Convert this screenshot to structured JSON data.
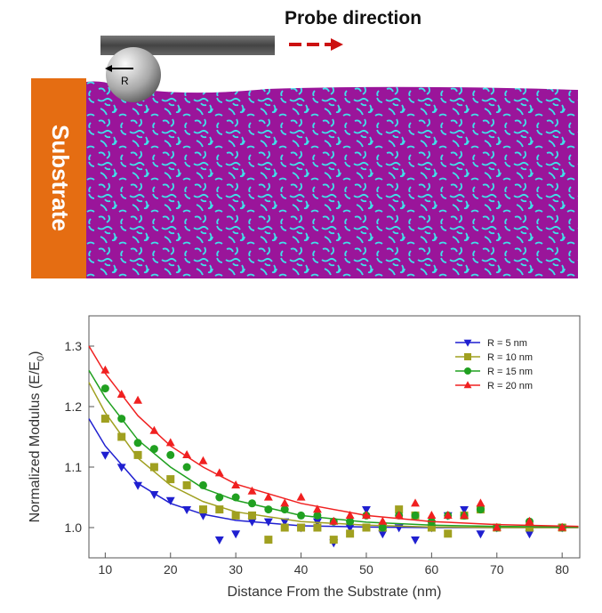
{
  "schematic": {
    "probe_label": "Probe direction",
    "radius_label": "R",
    "substrate_label": "Substrate"
  },
  "chart_data": {
    "type": "scatter",
    "xlabel": "Distance From the Substrate (nm)",
    "ylabel": "Normalized Modulus (E/E",
    "ylabel_sub": "0",
    "ylabel_end": ")",
    "xlim": [
      7.5,
      82.7
    ],
    "ylim": [
      0.95,
      1.35
    ],
    "xticks": [
      10,
      20,
      30,
      40,
      50,
      60,
      70,
      80
    ],
    "yticks": [
      {
        "value": 1.0,
        "label": "1.0"
      },
      1.1,
      1.2,
      1.3
    ],
    "legend": "upper right",
    "x": [
      10,
      12.5,
      15,
      17.5,
      20,
      22.5,
      25,
      27.5,
      30,
      32.5,
      35,
      37.5,
      40,
      42.5,
      45,
      47.5,
      50,
      52.5,
      55,
      57.5,
      60,
      62.5,
      65,
      67.5,
      70,
      75,
      80
    ],
    "fit_x": [
      7.5,
      10,
      15,
      20,
      25,
      30,
      40,
      50,
      60,
      70,
      82.5
    ],
    "series": [
      {
        "name": "R = 5 nm",
        "color": "#1f1fd0",
        "marker": "triangle-down",
        "values": [
          1.12,
          1.1,
          1.07,
          1.055,
          1.045,
          1.03,
          1.02,
          0.98,
          0.99,
          1.01,
          1.01,
          1.01,
          1.0,
          1.01,
          0.975,
          1.0,
          1.03,
          0.99,
          1.0,
          0.98,
          1.0,
          1.02,
          1.03,
          0.99,
          1.0,
          0.99,
          1.0
        ],
        "fit_values": [
          1.18,
          1.135,
          1.073,
          1.04,
          1.022,
          1.012,
          1.003,
          1.001,
          1.0,
          1.0,
          1.0
        ]
      },
      {
        "name": "R = 10 nm",
        "color": "#a0a020",
        "marker": "square",
        "values": [
          1.18,
          1.15,
          1.12,
          1.1,
          1.08,
          1.07,
          1.03,
          1.03,
          1.02,
          1.02,
          0.98,
          1.0,
          1.0,
          1.0,
          0.98,
          0.99,
          1.0,
          1.0,
          1.03,
          1.02,
          1.0,
          0.99,
          1.02,
          1.03,
          1.0,
          1.0,
          1.0
        ],
        "fit_values": [
          1.24,
          1.19,
          1.115,
          1.07,
          1.043,
          1.026,
          1.01,
          1.004,
          1.001,
          1.0,
          1.0
        ]
      },
      {
        "name": "R = 15 nm",
        "color": "#20a020",
        "marker": "circle",
        "values": [
          1.23,
          1.18,
          1.14,
          1.13,
          1.12,
          1.1,
          1.07,
          1.05,
          1.05,
          1.04,
          1.03,
          1.03,
          1.02,
          1.02,
          1.01,
          1.01,
          1.02,
          1.0,
          1.02,
          1.02,
          1.01,
          1.02,
          1.02,
          1.03,
          1.0,
          1.01,
          1.0
        ],
        "fit_values": [
          1.26,
          1.215,
          1.145,
          1.1,
          1.065,
          1.045,
          1.02,
          1.009,
          1.004,
          1.002,
          1.001
        ]
      },
      {
        "name": "R = 20 nm",
        "color": "#f02020",
        "marker": "triangle-up",
        "values": [
          1.26,
          1.22,
          1.21,
          1.16,
          1.14,
          1.12,
          1.11,
          1.09,
          1.07,
          1.06,
          1.05,
          1.04,
          1.05,
          1.03,
          1.01,
          1.02,
          1.02,
          1.01,
          1.02,
          1.04,
          1.02,
          1.02,
          1.02,
          1.04,
          1.0,
          1.01,
          1.0
        ],
        "fit_values": [
          1.3,
          1.255,
          1.185,
          1.135,
          1.1,
          1.072,
          1.04,
          1.02,
          1.01,
          1.005,
          1.002
        ]
      }
    ]
  }
}
